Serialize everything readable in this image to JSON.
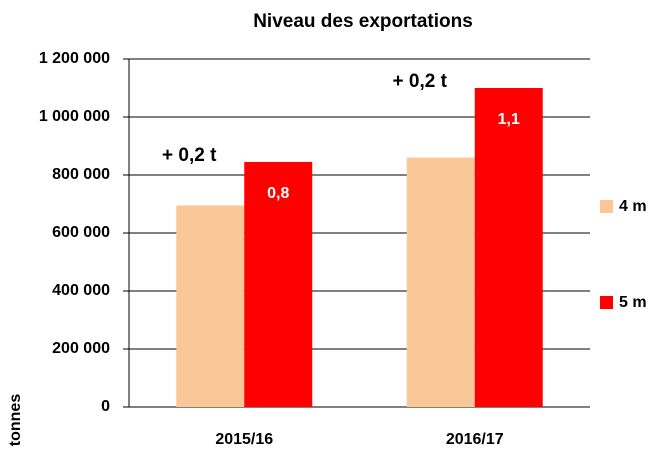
{
  "chart_data": {
    "type": "bar",
    "title": "Niveau des exportations",
    "y_label": "tonnes",
    "categories": [
      "2015/16",
      "2016/17"
    ],
    "series": [
      {
        "name": "4 m",
        "color": "#fac896",
        "values": [
          695000,
          860000
        ]
      },
      {
        "name": "5 m",
        "color": "#ff0000",
        "values": [
          845000,
          1100000
        ],
        "value_labels": [
          "0,8",
          "1,1"
        ]
      }
    ],
    "annotations": [
      "+ 0,2 t",
      "+ 0,2 t"
    ],
    "ylim": [
      0,
      1200000
    ],
    "yticks": [
      0,
      {
        "value": 200000,
        "label": "200 000"
      },
      {
        "value": 400000,
        "label": "400 000"
      },
      {
        "value": 600000,
        "label": "600 000"
      },
      {
        "value": 800000,
        "label": "800 000"
      },
      {
        "value": 1000000,
        "label": "1 000 000"
      },
      {
        "value": 1200000,
        "label": "1 200 000"
      }
    ],
    "grid": true
  }
}
